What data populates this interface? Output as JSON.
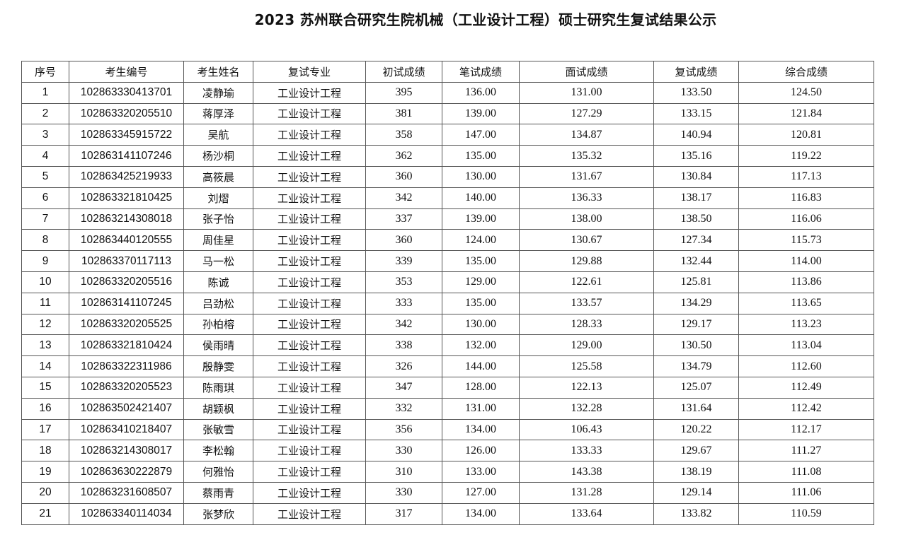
{
  "title": "2023 苏州联合研究生院机械（工业设计工程）硕士研究生复试结果公示",
  "table": {
    "headers": [
      "序号",
      "考生编号",
      "考生姓名",
      "复试专业",
      "初试成绩",
      "笔试成绩",
      "面试成绩",
      "复试成绩",
      "综合成绩"
    ],
    "rows": [
      [
        "1",
        "102863330413701",
        "凌静瑜",
        "工业设计工程",
        "395",
        "136.00",
        "131.00",
        "133.50",
        "124.50"
      ],
      [
        "2",
        "102863320205510",
        "蒋厚泽",
        "工业设计工程",
        "381",
        "139.00",
        "127.29",
        "133.15",
        "121.84"
      ],
      [
        "3",
        "102863345915722",
        "吴航",
        "工业设计工程",
        "358",
        "147.00",
        "134.87",
        "140.94",
        "120.81"
      ],
      [
        "4",
        "102863141107246",
        "杨沙桐",
        "工业设计工程",
        "362",
        "135.00",
        "135.32",
        "135.16",
        "119.22"
      ],
      [
        "5",
        "102863425219933",
        "高筱晨",
        "工业设计工程",
        "360",
        "130.00",
        "131.67",
        "130.84",
        "117.13"
      ],
      [
        "6",
        "102863321810425",
        "刘熠",
        "工业设计工程",
        "342",
        "140.00",
        "136.33",
        "138.17",
        "116.83"
      ],
      [
        "7",
        "102863214308018",
        "张子怡",
        "工业设计工程",
        "337",
        "139.00",
        "138.00",
        "138.50",
        "116.06"
      ],
      [
        "8",
        "102863440120555",
        "周佳星",
        "工业设计工程",
        "360",
        "124.00",
        "130.67",
        "127.34",
        "115.73"
      ],
      [
        "9",
        "102863370117113",
        "马一松",
        "工业设计工程",
        "339",
        "135.00",
        "129.88",
        "132.44",
        "114.00"
      ],
      [
        "10",
        "102863320205516",
        "陈诚",
        "工业设计工程",
        "353",
        "129.00",
        "122.61",
        "125.81",
        "113.86"
      ],
      [
        "11",
        "102863141107245",
        "吕劲松",
        "工业设计工程",
        "333",
        "135.00",
        "133.57",
        "134.29",
        "113.65"
      ],
      [
        "12",
        "102863320205525",
        "孙柏榕",
        "工业设计工程",
        "342",
        "130.00",
        "128.33",
        "129.17",
        "113.23"
      ],
      [
        "13",
        "102863321810424",
        "侯雨晴",
        "工业设计工程",
        "338",
        "132.00",
        "129.00",
        "130.50",
        "113.04"
      ],
      [
        "14",
        "102863322311986",
        "殷静雯",
        "工业设计工程",
        "326",
        "144.00",
        "125.58",
        "134.79",
        "112.60"
      ],
      [
        "15",
        "102863320205523",
        "陈雨琪",
        "工业设计工程",
        "347",
        "128.00",
        "122.13",
        "125.07",
        "112.49"
      ],
      [
        "16",
        "102863502421407",
        "胡颖枫",
        "工业设计工程",
        "332",
        "131.00",
        "132.28",
        "131.64",
        "112.42"
      ],
      [
        "17",
        "102863410218407",
        "张敏雪",
        "工业设计工程",
        "356",
        "134.00",
        "106.43",
        "120.22",
        "112.17"
      ],
      [
        "18",
        "102863214308017",
        "李松翰",
        "工业设计工程",
        "330",
        "126.00",
        "133.33",
        "129.67",
        "111.27"
      ],
      [
        "19",
        "102863630222879",
        "何雅怡",
        "工业设计工程",
        "310",
        "133.00",
        "143.38",
        "138.19",
        "111.08"
      ],
      [
        "20",
        "102863231608507",
        "蔡雨青",
        "工业设计工程",
        "330",
        "127.00",
        "131.28",
        "129.14",
        "111.06"
      ],
      [
        "21",
        "102863340114034",
        "张梦欣",
        "工业设计工程",
        "317",
        "134.00",
        "133.64",
        "133.82",
        "110.59"
      ]
    ]
  }
}
